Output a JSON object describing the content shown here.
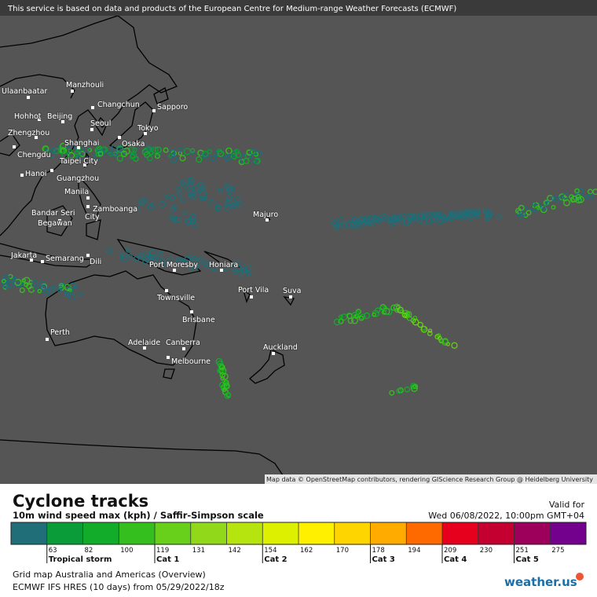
{
  "header": {
    "notice": "This service is based on data and products of the European Centre for Medium-range Weather Forecasts (ECMWF)"
  },
  "map": {
    "cities": [
      "Ulaanbaatar",
      "Manzhouli",
      "Changchun",
      "Sapporo",
      "Hohhot",
      "Beijing",
      "Seoul",
      "Tokyo",
      "Zhengzhou",
      "Shanghai",
      "Osaka",
      "Chengdu",
      "Taipei City",
      "Hanoi",
      "Guangzhou",
      "Manila",
      "Zamboanga",
      "City",
      "Bandar Seri",
      "Begawan",
      "Majuro",
      "Jakarta",
      "Semarang",
      "Dili",
      "Port Moresby",
      "Honiara",
      "Port Vila",
      "Suva",
      "Townsville",
      "Brisbane",
      "Perth",
      "Adelaide",
      "Canberra",
      "Melbourne",
      "Auckland"
    ],
    "attribution": "Map data © OpenStreetMap contributors, rendering GIScience Research Group @ Heidelberg University"
  },
  "legend": {
    "title": "Cyclone tracks",
    "subtitle": "10m wind speed max (kph) / Saffir-Simpson scale",
    "valid_label": "Valid for",
    "valid_time": "Wed 06/08/2022, 10:00pm GMT+04",
    "colors": [
      "#1f6e78",
      "#0b9c3a",
      "#13ac2a",
      "#35bf1f",
      "#68cf1a",
      "#92d81a",
      "#b6e40f",
      "#dcf000",
      "#fff000",
      "#ffd500",
      "#ffab00",
      "#ff6a00",
      "#e6001e",
      "#c40030",
      "#9c005a",
      "#74008e"
    ],
    "ticks": [
      63,
      82,
      100,
      119,
      131,
      142,
      154,
      162,
      170,
      178,
      194,
      209,
      230,
      251,
      275
    ],
    "categories": [
      {
        "label": "Tropical storm",
        "tick": 0
      },
      {
        "label": "Cat 1",
        "tick": 3
      },
      {
        "label": "Cat 2",
        "tick": 6
      },
      {
        "label": "Cat 3",
        "tick": 9
      },
      {
        "label": "Cat 4",
        "tick": 11
      },
      {
        "label": "Cat 5",
        "tick": 13
      }
    ]
  },
  "footer": {
    "line1": "Grid map Australia and Americas (Overview)",
    "line2": "ECMWF IFS HRES (10 days) from 05/29/2022/18z",
    "logo": "weather.us"
  }
}
